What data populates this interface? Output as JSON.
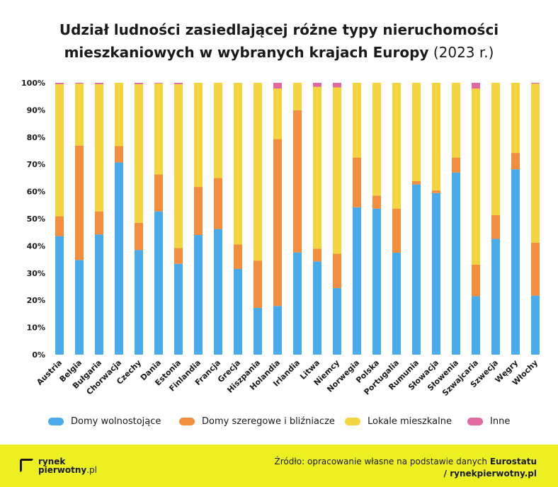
{
  "title": {
    "line1": "Udział ludności zasiedlającej różne typy nieruchomości",
    "line2_bold": "mieszkaniowych w wybranych krajach Europy",
    "line2_sub": "(2023 r.)"
  },
  "colors": {
    "detached": "#4aabea",
    "terraced": "#f28f3f",
    "flats": "#f2d540",
    "other": "#e06aa0",
    "footer_bg": "#ecf021"
  },
  "chart_data": {
    "type": "bar",
    "stacked": true,
    "ylim": [
      0,
      100
    ],
    "yticks": [
      "0%",
      "10%",
      "20%",
      "30%",
      "40%",
      "50%",
      "60%",
      "70%",
      "80%",
      "90%",
      "100%"
    ],
    "categories": [
      "Austria",
      "Belgia",
      "Bułgaria",
      "Chorwacja",
      "Czechy",
      "Dania",
      "Estonia",
      "Finlandia",
      "Francja",
      "Grecja",
      "Hiszpania",
      "Holandia",
      "Irlandia",
      "Litwa",
      "Niemcy",
      "Norwegia",
      "Polska",
      "Portugalia",
      "Rumunia",
      "Słowacja",
      "Słowenia",
      "Szwajcaria",
      "Szwecja",
      "Węgry",
      "Włochy"
    ],
    "series": [
      {
        "name": "Domy wolnostojące",
        "color": "#4aabea",
        "values": [
          43.6,
          34.8,
          44.2,
          70.7,
          38.5,
          52.7,
          33.4,
          44.0,
          46.2,
          31.5,
          17.2,
          17.9,
          37.6,
          34.3,
          24.5,
          54.2,
          53.7,
          37.5,
          62.6,
          59.4,
          67.0,
          21.5,
          42.6,
          68.2,
          21.7
        ]
      },
      {
        "name": "Domy szeregowe i bliźniacze",
        "color": "#f28f3f",
        "values": [
          7.3,
          42.1,
          8.5,
          6.0,
          10.0,
          13.6,
          5.8,
          17.7,
          18.8,
          9.0,
          17.4,
          61.4,
          52.3,
          4.7,
          12.6,
          18.3,
          4.8,
          16.2,
          1.2,
          1.0,
          5.5,
          11.6,
          8.7,
          6.0,
          19.5
        ]
      },
      {
        "name": "Lokale mieszkalne",
        "color": "#f2d540",
        "values": [
          48.6,
          22.8,
          46.8,
          23.3,
          51.0,
          33.5,
          60.3,
          38.3,
          35.0,
          59.5,
          65.4,
          18.6,
          10.1,
          59.5,
          61.2,
          27.5,
          41.5,
          46.3,
          36.2,
          39.6,
          27.5,
          64.8,
          48.7,
          25.8,
          58.5
        ]
      },
      {
        "name": "Inne",
        "color": "#e06aa0",
        "values": [
          0.5,
          0.3,
          0.5,
          0.0,
          0.5,
          0.2,
          0.5,
          0.0,
          0.0,
          0.0,
          0.0,
          2.1,
          0.0,
          1.5,
          1.7,
          0.0,
          0.0,
          0.0,
          0.0,
          0.0,
          0.0,
          2.1,
          0.0,
          0.0,
          0.3
        ]
      }
    ]
  },
  "legend": {
    "items": [
      {
        "label": "Domy wolnostojące",
        "color": "#4aabea"
      },
      {
        "label": "Domy szeregowe i bliźniacze",
        "color": "#f28f3f"
      },
      {
        "label": "Lokale mieszkalne",
        "color": "#f2d540"
      },
      {
        "label": "Inne",
        "color": "#e06aa0"
      }
    ]
  },
  "footer": {
    "logo_line1": "rynek",
    "logo_line2": "pierwotny",
    "logo_suffix": ".pl",
    "source_prefix": "Źródło: opracowanie własne na podstawie danych",
    "source_bold": "Eurostatu",
    "source_line2": "/ rynekpierwotny.pl"
  }
}
